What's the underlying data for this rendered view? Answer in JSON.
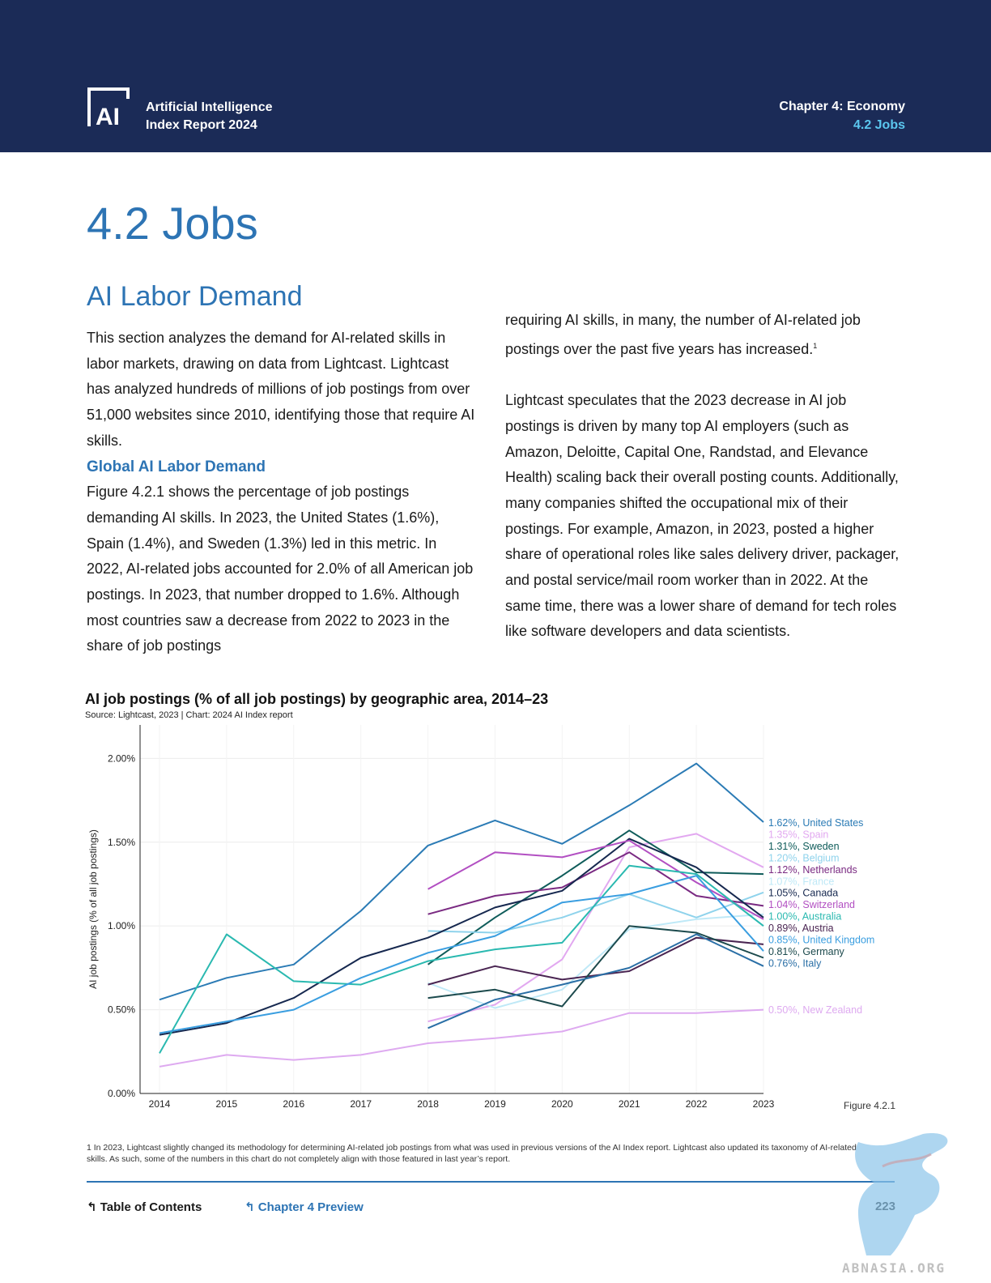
{
  "header": {
    "logo_glyph": "AI",
    "title_line1": "Artificial Intelligence",
    "title_line2": "Index Report 2024",
    "chapter": "Chapter 4: Economy",
    "section": "4.2 Jobs"
  },
  "page_title": "4.2 Jobs",
  "section_title": "AI Labor Demand",
  "body": {
    "p1": "This section analyzes the demand for AI-related skills in labor markets, drawing on data from Lightcast. Lightcast has analyzed hundreds of millions of job postings from over 51,000 websites since 2010, identifying those that require AI skills.",
    "subhead": "Global AI Labor Demand",
    "p2": "Figure 4.2.1 shows the percentage of job postings demanding AI skills. In 2023, the United States (1.6%), Spain (1.4%), and Sweden (1.3%) led in this metric. In 2022, AI-related jobs accounted for 2.0% of all American job postings. In 2023, that number dropped to 1.6%. Although most countries saw a decrease from 2022 to 2023 in the share of job postings",
    "p3": "requiring AI skills, in many, the number of AI-related job postings over the past five years has increased.",
    "p3_sup": "1",
    "p4": "Lightcast speculates that the 2023 decrease in AI job postings is driven by many top AI employers (such as Amazon, Deloitte, Capital One, Randstad, and Elevance Health) scaling back their overall posting counts. Additionally, many companies shifted the occupational mix of their postings. For example, Amazon, in 2023, posted a higher share of operational roles like sales delivery driver, packager, and postal service/mail room worker than in 2022. At the same time, there was a lower share of demand for tech roles like software developers and data scientists."
  },
  "chart_data": {
    "type": "line",
    "title": "AI job postings (% of all job postings) by geographic area, 2014–23",
    "source": "Source: Lightcast, 2023 | Chart: 2024 AI Index report",
    "xlabel": "",
    "ylabel": "AI job postings (% of all job postings)",
    "ylim": [
      0,
      2.2
    ],
    "yticks": [
      0,
      0.5,
      1.0,
      1.5,
      2.0
    ],
    "ytick_labels": [
      "0.00%",
      "0.50%",
      "1.00%",
      "1.50%",
      "2.00%"
    ],
    "x": [
      2014,
      2015,
      2016,
      2017,
      2018,
      2019,
      2020,
      2021,
      2022,
      2023
    ],
    "grid": true,
    "series": [
      {
        "name": "United States",
        "end_label": "1.62%, United States",
        "color": "#2b7bb5",
        "values": [
          0.56,
          0.69,
          0.77,
          1.09,
          1.48,
          1.63,
          1.49,
          1.72,
          1.97,
          1.62
        ]
      },
      {
        "name": "Spain",
        "end_label": "1.35%, Spain",
        "color": "#e2a8f0",
        "values": [
          null,
          null,
          null,
          null,
          0.43,
          0.53,
          0.8,
          1.47,
          1.55,
          1.35
        ]
      },
      {
        "name": "Sweden",
        "end_label": "1.31%, Sweden",
        "color": "#0f5c5a",
        "values": [
          null,
          null,
          null,
          null,
          0.77,
          1.05,
          1.3,
          1.57,
          1.32,
          1.31
        ]
      },
      {
        "name": "Belgium",
        "end_label": "1.20%, Belgium",
        "color": "#8fd3ec",
        "values": [
          null,
          null,
          null,
          null,
          0.97,
          0.96,
          1.05,
          1.19,
          1.05,
          1.2
        ]
      },
      {
        "name": "Netherlands",
        "end_label": "1.12%, Netherlands",
        "color": "#7a2a82",
        "values": [
          null,
          null,
          null,
          null,
          1.07,
          1.18,
          1.23,
          1.44,
          1.18,
          1.12
        ]
      },
      {
        "name": "France",
        "end_label": "1.07%, France",
        "color": "#bfe9f7",
        "values": [
          null,
          null,
          null,
          null,
          0.66,
          0.51,
          0.62,
          0.98,
          1.04,
          1.07
        ]
      },
      {
        "name": "Canada",
        "end_label": "1.05%, Canada",
        "color": "#16284f",
        "values": [
          0.35,
          0.42,
          0.57,
          0.81,
          0.93,
          1.11,
          1.21,
          1.52,
          1.35,
          1.05
        ]
      },
      {
        "name": "Switzerland",
        "end_label": "1.04%, Switzerland",
        "color": "#b24fc2",
        "values": [
          null,
          null,
          null,
          null,
          1.22,
          1.44,
          1.41,
          1.51,
          1.26,
          1.04
        ]
      },
      {
        "name": "Australia",
        "end_label": "1.00%, Australia",
        "color": "#2ab9b0",
        "values": [
          0.24,
          0.95,
          0.67,
          0.65,
          0.79,
          0.86,
          0.9,
          1.36,
          1.31,
          1.0
        ]
      },
      {
        "name": "Austria",
        "end_label": "0.89%, Austria",
        "color": "#4a2552",
        "values": [
          null,
          null,
          null,
          null,
          0.65,
          0.76,
          0.68,
          0.73,
          0.93,
          0.89
        ]
      },
      {
        "name": "United Kingdom",
        "end_label": "0.85%, United Kingdom",
        "color": "#3a9ee0",
        "values": [
          0.36,
          0.43,
          0.5,
          0.69,
          0.84,
          0.94,
          1.14,
          1.19,
          1.3,
          0.85
        ]
      },
      {
        "name": "Germany",
        "end_label": "0.81%, Germany",
        "color": "#1c4a4d",
        "values": [
          null,
          null,
          null,
          null,
          0.57,
          0.62,
          0.52,
          1.0,
          0.96,
          0.81
        ]
      },
      {
        "name": "Italy",
        "end_label": "0.76%, Italy",
        "color": "#2a6fa6",
        "values": [
          null,
          null,
          null,
          null,
          0.39,
          0.56,
          0.65,
          0.75,
          0.95,
          0.76
        ]
      },
      {
        "name": "New Zealand",
        "end_label": "0.50%, New Zealand",
        "color": "#deaaf0",
        "values": [
          0.16,
          0.23,
          0.2,
          0.23,
          0.3,
          0.33,
          0.37,
          0.48,
          0.48,
          0.5
        ]
      }
    ],
    "figure_label": "Figure 4.2.1"
  },
  "footnote": "1 In 2023, Lightcast slightly changed its methodology for determining AI-related job postings from what was used in previous versions of the AI Index report. Lightcast also updated its taxonomy of AI-related skills. As such, some of the numbers in this chart do not completely align with those featured in last year’s report.",
  "nav": {
    "toc": "Table of Contents",
    "chapter_preview": "Chapter 4 Preview",
    "page_number": "223"
  },
  "watermark_text": "ABNASIA.ORG"
}
